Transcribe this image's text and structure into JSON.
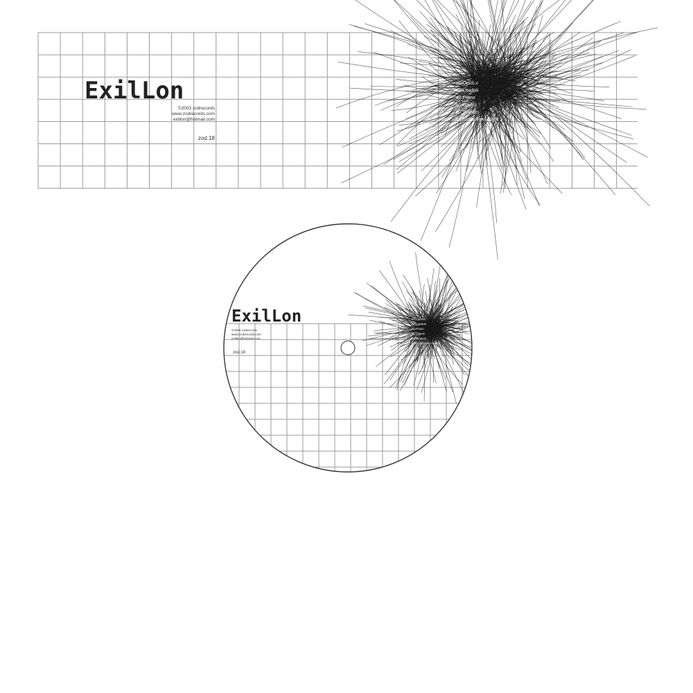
{
  "cover": {
    "artist": "ExilLon",
    "credits": [
      "©2003 zodrecords",
      "www.zodrecords.com",
      "exillon@hotmail.com"
    ],
    "catalog": "zod.18",
    "tracks": [
      "a1.Opus.v",
      "a2.Loadok",
      "a3.Piano",
      "b1.Glanni",
      "b2.Watson",
      "b3.Noise Feel Right"
    ]
  },
  "colors": {
    "background": "#ffffff",
    "grid": "#9a9a9a",
    "scribble": "#1a1a1a"
  }
}
